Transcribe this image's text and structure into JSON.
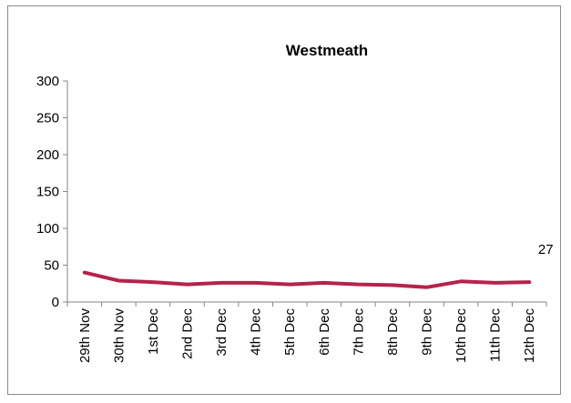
{
  "chart_data": {
    "type": "line",
    "title": "Westmeath",
    "xlabel": "",
    "ylabel": "",
    "categories": [
      "29th Nov",
      "30th Nov",
      "1st Dec",
      "2nd Dec",
      "3rd Dec",
      "4th Dec",
      "5th Dec",
      "6th Dec",
      "7th Dec",
      "8th Dec",
      "9th Dec",
      "10th Dec",
      "11th Dec",
      "12th Dec"
    ],
    "series": [
      {
        "values": [
          40,
          29,
          27,
          24,
          26,
          26,
          24,
          26,
          24,
          23,
          20,
          28,
          26,
          27
        ],
        "color": "#b5234a"
      }
    ],
    "ylim": [
      0,
      300
    ],
    "yticks": [
      "0",
      "50",
      "100",
      "150",
      "200",
      "250",
      "300"
    ],
    "data_labels": [
      {
        "index": 13,
        "text": "27"
      }
    ],
    "grid": false,
    "legend": "none"
  }
}
